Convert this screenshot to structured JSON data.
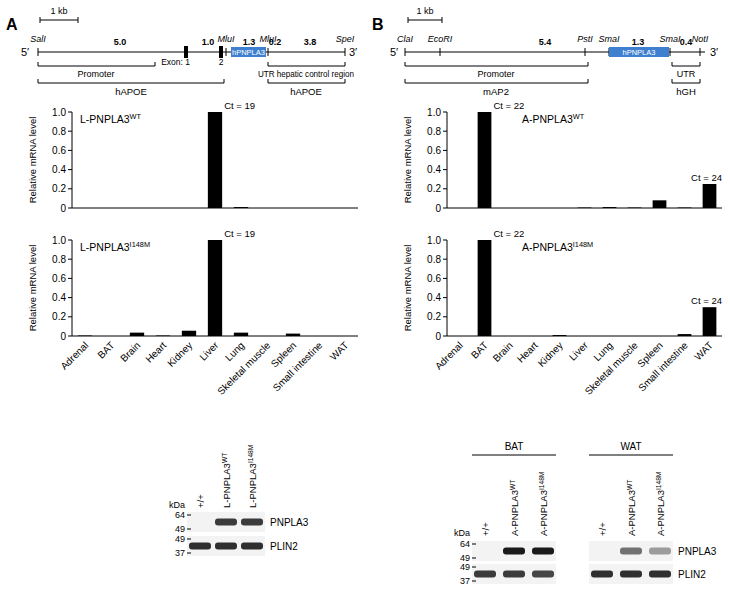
{
  "chart_data": [
    {
      "type": "bar",
      "title": "L-PNPLA3",
      "title_sup": "WT",
      "ylabel": "Relative mRNA level",
      "categories": [
        "Adrenal",
        "BAT",
        "Brain",
        "Heart",
        "Kidney",
        "Liver",
        "Lung",
        "Skeletal muscle",
        "Spleen",
        "Small intestine",
        "WAT"
      ],
      "values": [
        0,
        0,
        0,
        0,
        0,
        1,
        0.01,
        0,
        0,
        0,
        0
      ],
      "color": "#000000",
      "ylim": [
        0,
        1
      ],
      "yticks": [
        0,
        0.2,
        0.4,
        0.6,
        0.8,
        {
          "value": 1,
          "label": "1.0"
        }
      ],
      "grid": false,
      "tick_labels": "y",
      "annotations": [
        {
          "category": "Liver",
          "text": "Ct = 19"
        }
      ]
    },
    {
      "type": "bar",
      "title": "L-PNPLA3",
      "title_sup": "I148M",
      "ylabel": "Relative mRNA level",
      "categories": [
        "Adrenal",
        "BAT",
        "Brain",
        "Heart",
        "Kidney",
        "Liver",
        "Lung",
        "Skeletal muscle",
        "Spleen",
        "Small intestine",
        "WAT"
      ],
      "values": [
        0.005,
        0,
        0.035,
        0.005,
        0.055,
        1,
        0.035,
        0,
        0.025,
        0,
        0
      ],
      "color": "#000000",
      "ylim": [
        0,
        1
      ],
      "yticks": [
        0,
        0.2,
        0.4,
        0.6,
        0.8,
        {
          "value": 1,
          "label": "1.0"
        }
      ],
      "grid": false,
      "annotations": [
        {
          "category": "Liver",
          "text": "Ct = 19"
        }
      ]
    },
    {
      "type": "bar",
      "title": "A-PNPLA3",
      "title_sup": "WT",
      "ylabel": "Relative mRNA level",
      "categories": [
        "Adrenal",
        "BAT",
        "Brain",
        "Heart",
        "Kidney",
        "Liver",
        "Lung",
        "Skeletal muscle",
        "Spleen",
        "Small intestine",
        "WAT"
      ],
      "values": [
        0,
        1,
        0,
        0,
        0,
        0.005,
        0.01,
        0.005,
        0.08,
        0.005,
        0.25
      ],
      "color": "#000000",
      "ylim": [
        0,
        1
      ],
      "yticks": [
        0,
        0.2,
        0.4,
        0.6,
        0.8,
        {
          "value": 1,
          "label": "1.0"
        }
      ],
      "grid": false,
      "tick_labels": "y",
      "annotations": [
        {
          "category": "BAT",
          "text": "Ct = 22"
        },
        {
          "category": "WAT",
          "text": "Ct = 24"
        }
      ]
    },
    {
      "type": "bar",
      "title": "A-PNPLA3",
      "title_sup": "I148M",
      "ylabel": "Relative mRNA level",
      "categories": [
        "Adrenal",
        "BAT",
        "Brain",
        "Heart",
        "Kidney",
        "Liver",
        "Lung",
        "Skeletal muscle",
        "Spleen",
        "Small intestine",
        "WAT"
      ],
      "values": [
        0,
        1,
        0,
        0,
        0.01,
        0,
        0,
        0,
        0,
        0.02,
        0.3
      ],
      "color": "#000000",
      "ylim": [
        0,
        1
      ],
      "yticks": [
        0,
        0.2,
        0.4,
        0.6,
        0.8,
        {
          "value": 1,
          "label": "1.0"
        }
      ],
      "grid": false,
      "annotations": [
        {
          "category": "BAT",
          "text": "Ct = 22"
        },
        {
          "category": "WAT",
          "text": "Ct = 24"
        }
      ]
    }
  ],
  "panels": [
    {
      "label": "A",
      "scale_bar": "1 kb",
      "construct": {
        "ends": [
          "5′",
          "3′"
        ],
        "sites": [
          "SalI",
          "MluI",
          "MluI",
          "SpeI"
        ],
        "segments": [
          "5.0",
          "1.0",
          "1.3",
          "0.2",
          "3.8"
        ],
        "insert": "hPNPLA3",
        "exons": [
          "Exon: 1",
          "2"
        ],
        "regions": [
          "Promoter",
          "UTR hepatic control region"
        ],
        "sources": [
          "hAPOE",
          "hAPOE"
        ]
      },
      "blot": {
        "unit": "kDa",
        "groups": [
          {
            "lanes": [
              {
                "text": "+/+"
              },
              {
                "text": "L-PNPLA3",
                "sup": "WT"
              },
              {
                "text": "L-PNPLA3",
                "sup": "I148M"
              }
            ]
          }
        ],
        "rows": [
          {
            "label": "PNPLA3",
            "markers": [
              64,
              49
            ],
            "intensity": [
              0,
              0.85,
              0.85
            ]
          },
          {
            "label": "PLIN2",
            "markers": [
              49,
              37
            ],
            "intensity": [
              0.9,
              0.9,
              0.9
            ]
          }
        ]
      }
    },
    {
      "label": "B",
      "scale_bar": "1 kb",
      "construct": {
        "ends": [
          "5′",
          "3′"
        ],
        "sites": [
          "ClaI",
          "EcoRI",
          "PstI",
          "SmaI",
          "SmaI",
          "NotI"
        ],
        "segments": [
          "5.4",
          "1.3",
          "0.4"
        ],
        "insert": "hPNPLA3",
        "exons": [],
        "regions": [
          "Promoter",
          "UTR"
        ],
        "sources": [
          "mAP2",
          "hGH"
        ]
      },
      "blot": {
        "unit": "kDa",
        "groups": [
          {
            "label": "BAT",
            "lanes": [
              {
                "text": "+/+"
              },
              {
                "text": "A-PNPLA3",
                "sup": "WT"
              },
              {
                "text": "A-PNPLA3",
                "sup": "I148M"
              }
            ]
          },
          {
            "label": "WAT",
            "lanes": [
              {
                "text": "+/+"
              },
              {
                "text": "A-PNPLA3",
                "sup": "WT"
              },
              {
                "text": "A-PNPLA3",
                "sup": "I148M"
              }
            ]
          }
        ],
        "rows": [
          {
            "label": "PNPLA3",
            "markers": [
              64,
              49
            ],
            "intensity": [
              0,
              1,
              1,
              0,
              0.6,
              0.4
            ]
          },
          {
            "label": "PLIN2",
            "markers": [
              49,
              37
            ],
            "intensity": [
              0.85,
              0.85,
              0.8,
              0.9,
              0.9,
              0.9
            ]
          }
        ]
      }
    }
  ]
}
